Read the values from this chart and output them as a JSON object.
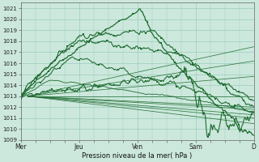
{
  "xlabel": "Pression niveau de la mer( hPa )",
  "ylim": [
    1009,
    1021.5
  ],
  "xlim": [
    0,
    4.0
  ],
  "yticks": [
    1009,
    1010,
    1011,
    1012,
    1013,
    1014,
    1015,
    1016,
    1017,
    1018,
    1019,
    1020,
    1021
  ],
  "xtick_labels": [
    "Mer",
    "Jeu",
    "Ven",
    "Sam",
    "D"
  ],
  "xtick_positions": [
    0,
    1,
    2,
    3,
    4
  ],
  "background_color": "#cce8dc",
  "grid_color": "#99ccbb",
  "line_color": "#1e6b30",
  "figsize": [
    3.2,
    2.0
  ],
  "dpi": 100
}
